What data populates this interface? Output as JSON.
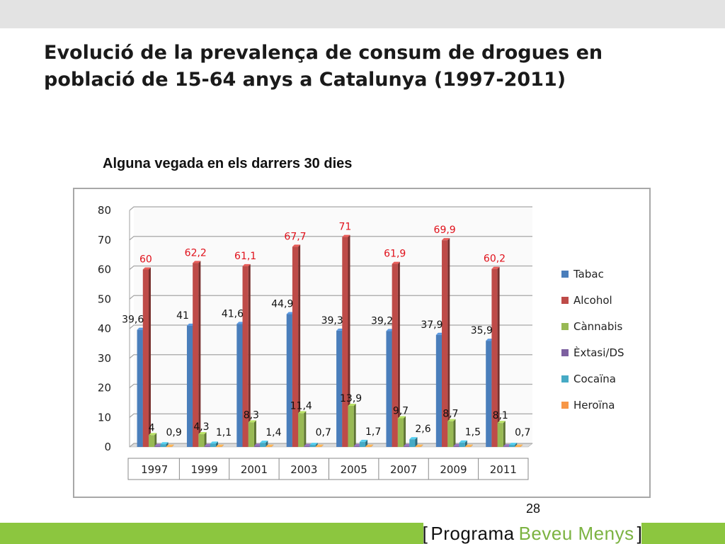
{
  "slide": {
    "title": "Evolució de la prevalença  de consum de drogues en\npoblació de 15-64 anys a Catalunya (1997-2011)",
    "chart_heading": "Alguna vegada en els darrers 30 dies",
    "page_number": "28",
    "brand": {
      "bracket_open": "[",
      "word1": "Programa",
      "word2": "Beveu Menys",
      "bracket_close": "]"
    }
  },
  "colors": {
    "top_bar": "#e3e3e3",
    "bottom_bar": "#8cc63f",
    "brand_green": "#7cb342",
    "label_red": "#e0101a"
  },
  "chart_data": {
    "type": "bar",
    "title": "Alguna vegada en els darrers 30 dies",
    "categories": [
      "1997",
      "1999",
      "2001",
      "2003",
      "2005",
      "2007",
      "2009",
      "2011"
    ],
    "ylim": [
      0,
      80
    ],
    "yticks": [
      "0",
      "10",
      "20",
      "30",
      "40",
      "50",
      "60",
      "70",
      "80"
    ],
    "grid": true,
    "legend_position": "right",
    "series": [
      {
        "name": "Tabac",
        "color": "#4a7ebb",
        "values": [
          39.6,
          41,
          41.6,
          44.9,
          39.3,
          39.2,
          37.9,
          35.9
        ],
        "labels": [
          "39,6",
          "41",
          "41,6",
          "44,9",
          "39,3",
          "39,2",
          "37,9",
          "35,9"
        ],
        "label_color": "#111111"
      },
      {
        "name": "Alcohol",
        "color": "#be4b48",
        "values": [
          60,
          62.2,
          61.1,
          67.7,
          71,
          61.9,
          69.9,
          60.2
        ],
        "labels": [
          "60",
          "62,2",
          "61,1",
          "67,7",
          "71",
          "61,9",
          "69,9",
          "60,2"
        ],
        "label_color": "#e0101a"
      },
      {
        "name": "Cànnabis",
        "color": "#98b954",
        "values": [
          4,
          4.3,
          8.3,
          11.4,
          13.9,
          9.7,
          8.7,
          8.1
        ],
        "labels": [
          "4",
          "4,3",
          "8,3",
          "11,4",
          "13,9",
          "9,7",
          "8,7",
          "8,1"
        ],
        "label_color": "#111111"
      },
      {
        "name": "Èxtasi/DS",
        "color": "#7d60a0",
        "values": [
          0.3,
          0.3,
          0.4,
          0.3,
          0.3,
          0.3,
          0.3,
          0.2
        ],
        "labels": [],
        "label_color": "#111111"
      },
      {
        "name": "Cocaïna",
        "color": "#46aac5",
        "values": [
          0.9,
          1.1,
          1.4,
          0.7,
          1.7,
          2.6,
          1.5,
          0.7
        ],
        "labels": [
          "0,9",
          "1,1",
          "1,4",
          "0,7",
          "1,7",
          "2,6",
          "1,5",
          "0,7"
        ],
        "label_color": "#111111"
      },
      {
        "name": "Heroïna",
        "color": "#f79646",
        "values": [
          0.1,
          0.1,
          0.1,
          0.1,
          0.1,
          0.1,
          0.1,
          0.1
        ],
        "labels": [],
        "label_color": "#111111"
      }
    ]
  }
}
